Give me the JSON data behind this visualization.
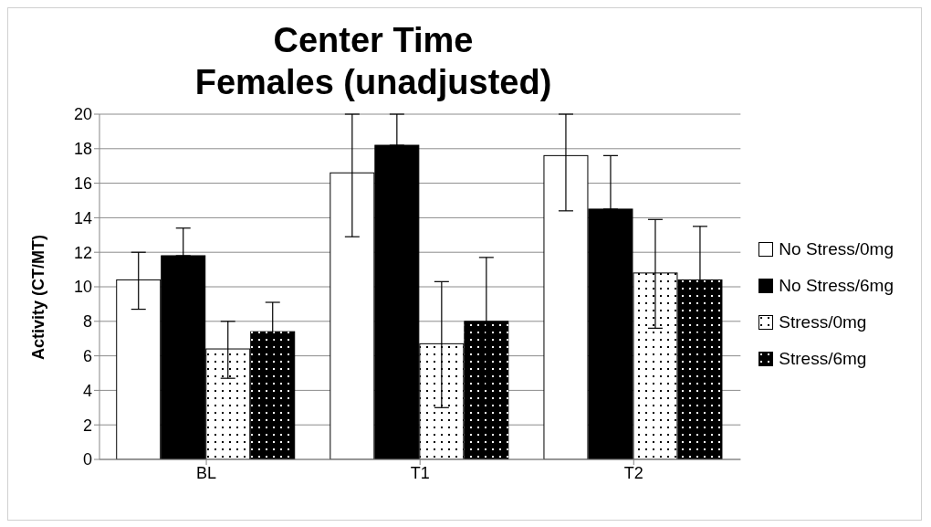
{
  "chart_data": {
    "type": "bar",
    "title": "Center Time\nFemales (unadjusted)",
    "ylabel": "Activity (CT/MT)",
    "categories": [
      "BL",
      "T1",
      "T2"
    ],
    "series": [
      {
        "name": "No Stress/0mg",
        "color": "#ffffff",
        "values": [
          10.4,
          16.6,
          17.6
        ],
        "errors": [
          [
            8.7,
            12.0
          ],
          [
            12.9,
            20
          ],
          [
            14.4,
            20
          ]
        ]
      },
      {
        "name": "No Stress/6mg",
        "color": "#000000",
        "values": [
          11.8,
          18.2,
          14.5
        ],
        "errors": [
          [
            11.8,
            13.4
          ],
          [
            18.2,
            20
          ],
          [
            14.5,
            17.6
          ]
        ]
      },
      {
        "name": "Stress/0mg",
        "color": "#ffffff",
        "values": [
          6.4,
          6.7,
          10.8
        ],
        "errors": [
          [
            4.7,
            8.0
          ],
          [
            3.0,
            10.3
          ],
          [
            7.6,
            13.9
          ]
        ]
      },
      {
        "name": "Stress/6mg",
        "color": "#000000",
        "values": [
          7.4,
          8.0,
          10.4
        ],
        "errors": [
          [
            5.8,
            9.1
          ],
          [
            4.3,
            11.7
          ],
          [
            7.3,
            13.5
          ]
        ]
      }
    ],
    "ylim": [
      0,
      20
    ],
    "yticks": [
      0,
      2,
      4,
      6,
      8,
      10,
      12,
      14,
      16,
      18,
      20
    ],
    "grid": "y",
    "legend": "right"
  }
}
